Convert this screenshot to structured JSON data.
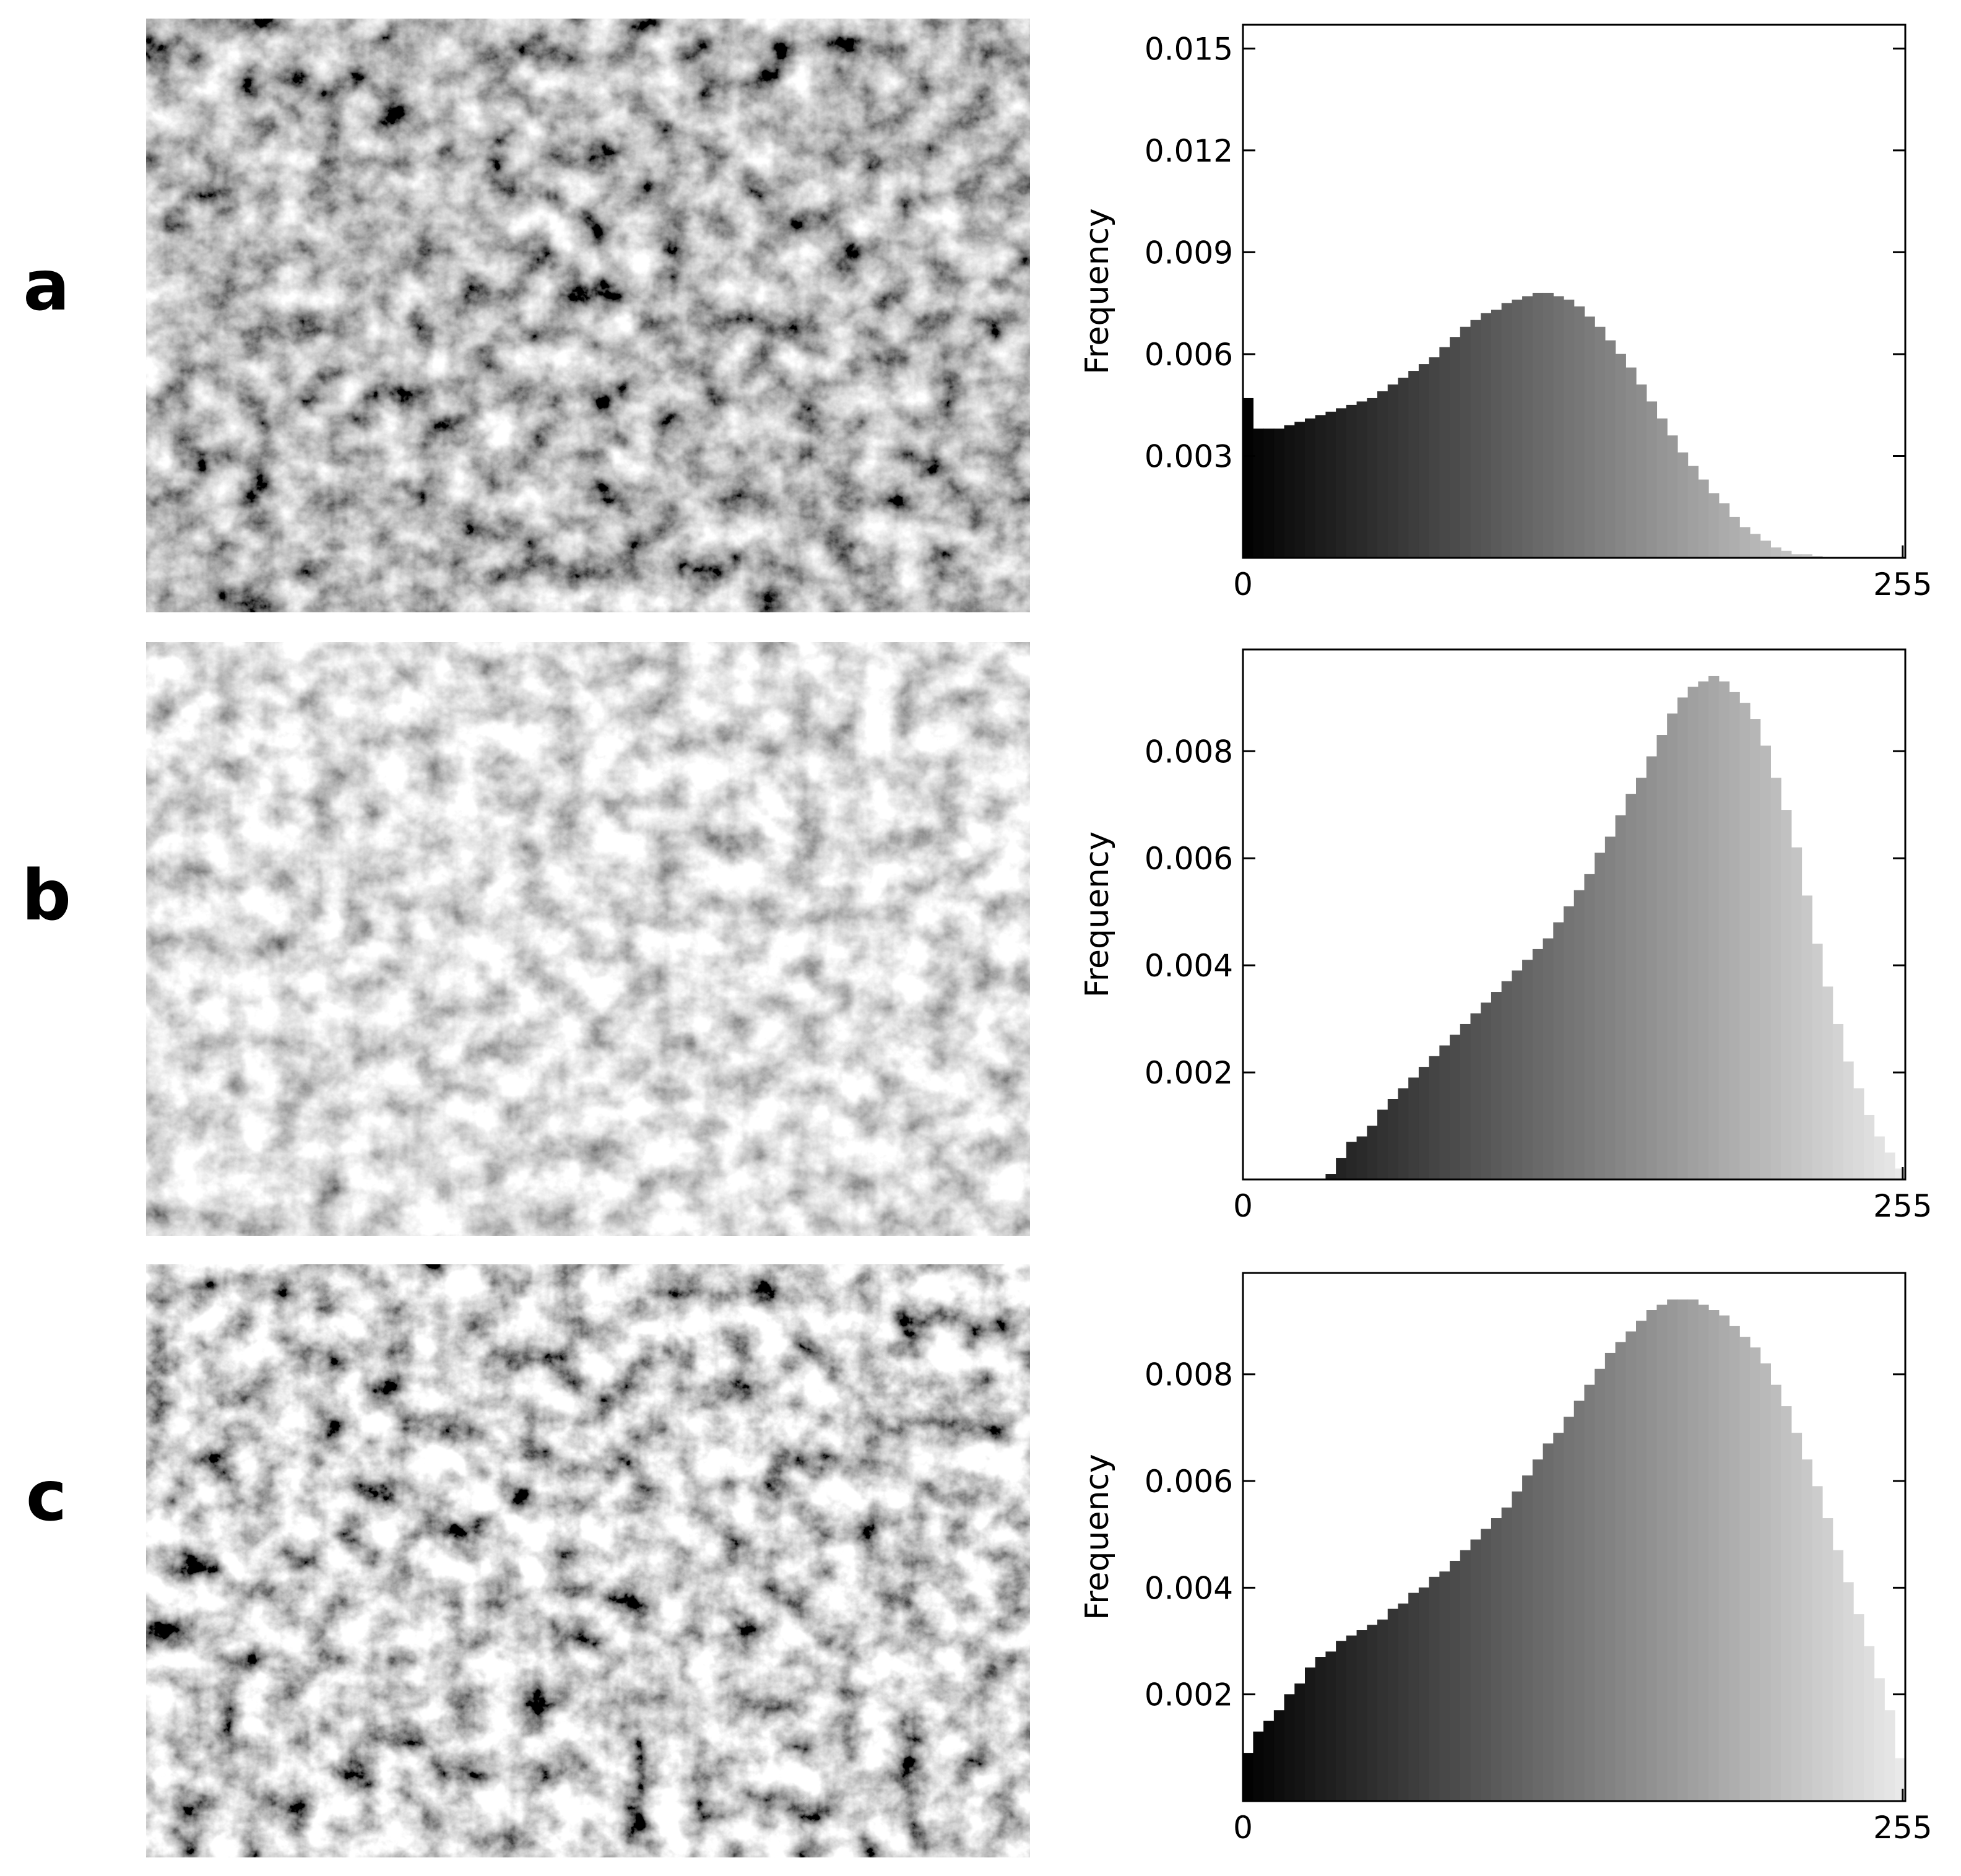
{
  "panel_labels": [
    "a",
    "b",
    "c"
  ],
  "chart_data": [
    {
      "type": "histogram",
      "ylabel": "Frequency",
      "colormap": "gray",
      "bins": [
        0,
        4,
        8,
        12,
        16,
        20,
        24,
        28,
        32,
        36,
        40,
        44,
        48,
        52,
        56,
        60,
        64,
        68,
        72,
        76,
        80,
        84,
        88,
        92,
        96,
        100,
        104,
        108,
        112,
        116,
        120,
        124,
        128,
        132,
        136,
        140,
        144,
        148,
        152,
        156,
        160,
        164,
        168,
        172,
        176,
        180,
        184,
        188,
        192,
        196,
        200,
        204,
        208,
        212,
        216,
        220,
        224,
        228,
        232,
        236,
        240,
        244,
        248,
        252,
        256
      ],
      "values": [
        0.0047,
        0.0038,
        0.0038,
        0.0038,
        0.0039,
        0.004,
        0.0041,
        0.0042,
        0.0043,
        0.0044,
        0.0045,
        0.0046,
        0.0047,
        0.0049,
        0.0051,
        0.0053,
        0.0055,
        0.0057,
        0.0059,
        0.0062,
        0.0065,
        0.0068,
        0.007,
        0.0072,
        0.0073,
        0.0075,
        0.0076,
        0.0077,
        0.0078,
        0.0078,
        0.0077,
        0.0076,
        0.0074,
        0.0071,
        0.0068,
        0.0064,
        0.006,
        0.0056,
        0.0051,
        0.0046,
        0.0041,
        0.0036,
        0.0031,
        0.0027,
        0.0023,
        0.0019,
        0.0016,
        0.0012,
        0.0009,
        0.0007,
        0.0005,
        0.0003,
        0.0002,
        0.0001,
        0.0001,
        5e-05,
        0,
        0,
        0,
        0,
        0,
        0,
        0,
        0
      ],
      "xlim": [
        0,
        256
      ],
      "xticks": [
        0,
        255
      ],
      "ylim": [
        0,
        0.0157
      ],
      "yticks": [
        0.003,
        0.006,
        0.009,
        0.012,
        0.015
      ]
    },
    {
      "type": "histogram",
      "ylabel": "Frequency",
      "colormap": "gray",
      "bins": [
        0,
        4,
        8,
        12,
        16,
        20,
        24,
        28,
        32,
        36,
        40,
        44,
        48,
        52,
        56,
        60,
        64,
        68,
        72,
        76,
        80,
        84,
        88,
        92,
        96,
        100,
        104,
        108,
        112,
        116,
        120,
        124,
        128,
        132,
        136,
        140,
        144,
        148,
        152,
        156,
        160,
        164,
        168,
        172,
        176,
        180,
        184,
        188,
        192,
        196,
        200,
        204,
        208,
        212,
        216,
        220,
        224,
        228,
        232,
        236,
        240,
        244,
        248,
        252,
        256
      ],
      "values": [
        0,
        0,
        0,
        0,
        0,
        0,
        0,
        0,
        0.0001,
        0.0004,
        0.0007,
        0.0008,
        0.001,
        0.0013,
        0.0015,
        0.0017,
        0.0019,
        0.0021,
        0.0023,
        0.0025,
        0.0027,
        0.0029,
        0.0031,
        0.0033,
        0.0035,
        0.0037,
        0.0039,
        0.0041,
        0.0043,
        0.0045,
        0.0048,
        0.0051,
        0.0054,
        0.0057,
        0.0061,
        0.0064,
        0.0068,
        0.0072,
        0.0075,
        0.0079,
        0.0083,
        0.0087,
        0.009,
        0.0092,
        0.0093,
        0.0094,
        0.0093,
        0.0091,
        0.0089,
        0.0086,
        0.0081,
        0.0075,
        0.0069,
        0.0062,
        0.0053,
        0.0044,
        0.0036,
        0.0029,
        0.0022,
        0.0017,
        0.0012,
        0.0008,
        0.0005,
        0.0002
      ],
      "xlim": [
        0,
        256
      ],
      "xticks": [
        0,
        255
      ],
      "ylim": [
        0,
        0.0099
      ],
      "yticks": [
        0.002,
        0.004,
        0.006,
        0.008
      ]
    },
    {
      "type": "histogram",
      "ylabel": "Frequency",
      "colormap": "gray",
      "bins": [
        0,
        4,
        8,
        12,
        16,
        20,
        24,
        28,
        32,
        36,
        40,
        44,
        48,
        52,
        56,
        60,
        64,
        68,
        72,
        76,
        80,
        84,
        88,
        92,
        96,
        100,
        104,
        108,
        112,
        116,
        120,
        124,
        128,
        132,
        136,
        140,
        144,
        148,
        152,
        156,
        160,
        164,
        168,
        172,
        176,
        180,
        184,
        188,
        192,
        196,
        200,
        204,
        208,
        212,
        216,
        220,
        224,
        228,
        232,
        236,
        240,
        244,
        248,
        252,
        256
      ],
      "values": [
        0.0009,
        0.0013,
        0.0015,
        0.0017,
        0.002,
        0.0022,
        0.0025,
        0.0027,
        0.0028,
        0.003,
        0.0031,
        0.0032,
        0.0033,
        0.0034,
        0.0036,
        0.0037,
        0.0039,
        0.004,
        0.0042,
        0.0043,
        0.0045,
        0.0047,
        0.0049,
        0.0051,
        0.0053,
        0.0055,
        0.0058,
        0.0061,
        0.0064,
        0.0067,
        0.0069,
        0.0072,
        0.0075,
        0.0078,
        0.0081,
        0.0084,
        0.0086,
        0.0088,
        0.009,
        0.0092,
        0.0093,
        0.0094,
        0.0094,
        0.0094,
        0.0093,
        0.0092,
        0.0091,
        0.0089,
        0.0087,
        0.0085,
        0.0082,
        0.0078,
        0.0074,
        0.0069,
        0.0064,
        0.0059,
        0.0053,
        0.0047,
        0.0041,
        0.0035,
        0.0029,
        0.0023,
        0.0017,
        0.0008
      ],
      "xlim": [
        0,
        256
      ],
      "xticks": [
        0,
        255
      ],
      "ylim": [
        0,
        0.0099
      ],
      "yticks": [
        0.002,
        0.004,
        0.006,
        0.008
      ]
    }
  ]
}
